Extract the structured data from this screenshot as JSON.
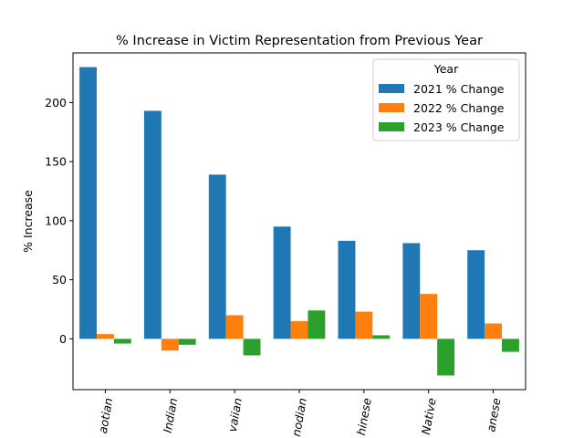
{
  "chart_data": {
    "type": "bar",
    "title": "% Increase in Victim Representation from Previous Year",
    "xlabel": "",
    "ylabel": "% Increase",
    "categories": [
      "aotian",
      "Indian",
      "vaiian",
      "nodian",
      "hinese",
      "Native",
      "anese"
    ],
    "series": [
      {
        "name": "2021 % Change",
        "color": "#1f77b4",
        "values": [
          230,
          193,
          139,
          95,
          83,
          81,
          75
        ]
      },
      {
        "name": "2022 % Change",
        "color": "#ff7f0e",
        "values": [
          4,
          -10,
          20,
          15,
          23,
          38,
          13
        ]
      },
      {
        "name": "2023 % Change",
        "color": "#2ca02c",
        "values": [
          -4,
          -5,
          -14,
          24,
          3,
          -31,
          -11
        ]
      }
    ],
    "ylim": [
      -43,
      242
    ],
    "yticks": [
      0,
      50,
      100,
      150,
      200
    ],
    "legend": {
      "title": "Year",
      "placement": "top-right"
    },
    "grid": false
  }
}
